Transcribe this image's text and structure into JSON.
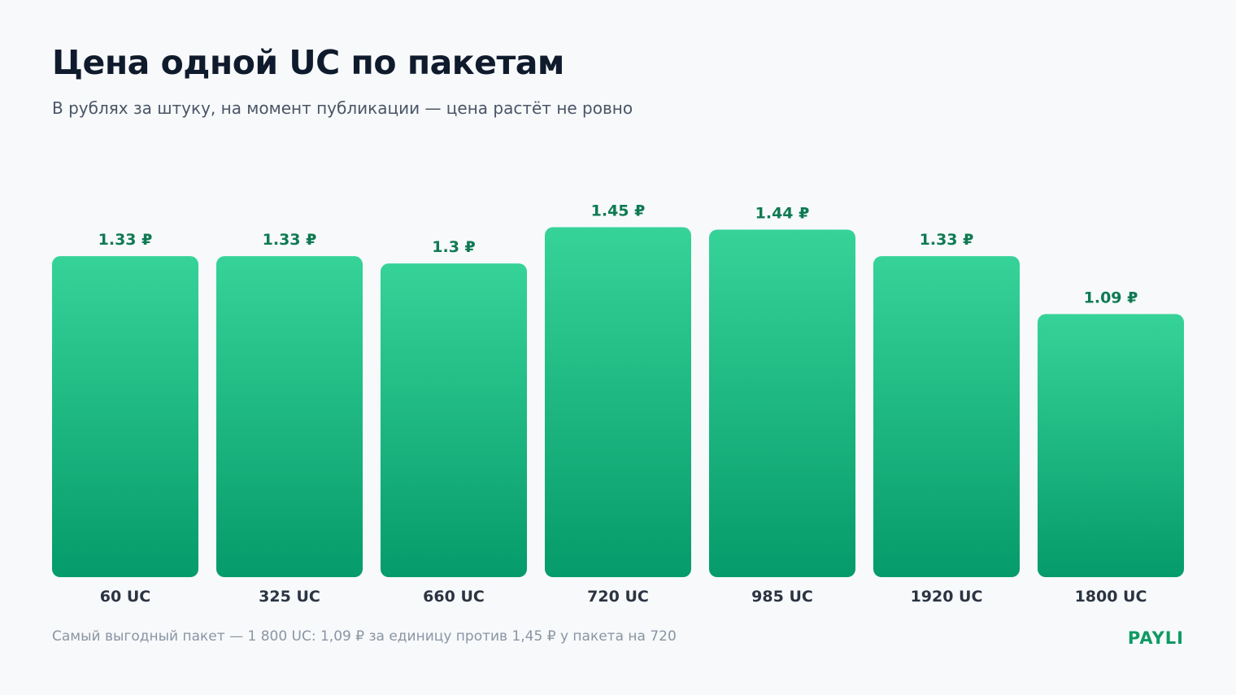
{
  "header": {
    "title": "Цена одной UC по пакетам",
    "subtitle": "В рублях за штуку, на момент публикации — цена растёт не ровно"
  },
  "footer": {
    "note": "Самый выгодный пакет — 1 800 UC: 1,09 ₽ за единицу против 1,45 ₽ у пакета на 720",
    "brand": "PAYLI"
  },
  "colors": {
    "bar_top": "#36d399",
    "bar_bottom": "#069b6a",
    "value_label": "#0f7a52",
    "brand": "#0f9a63"
  },
  "chart_data": {
    "type": "bar",
    "categories": [
      "60 UC",
      "325 UC",
      "660 UC",
      "720 UC",
      "985 UC",
      "1920 UC",
      "1800 UC"
    ],
    "values": [
      1.33,
      1.33,
      1.3,
      1.45,
      1.44,
      1.33,
      1.09
    ],
    "value_labels": [
      "1.33 ₽",
      "1.33 ₽",
      "1.3 ₽",
      "1.45 ₽",
      "1.44 ₽",
      "1.33 ₽",
      "1.09 ₽"
    ],
    "ylim": [
      0,
      1.6
    ],
    "unit": "₽",
    "grid": false,
    "legend": "none"
  }
}
